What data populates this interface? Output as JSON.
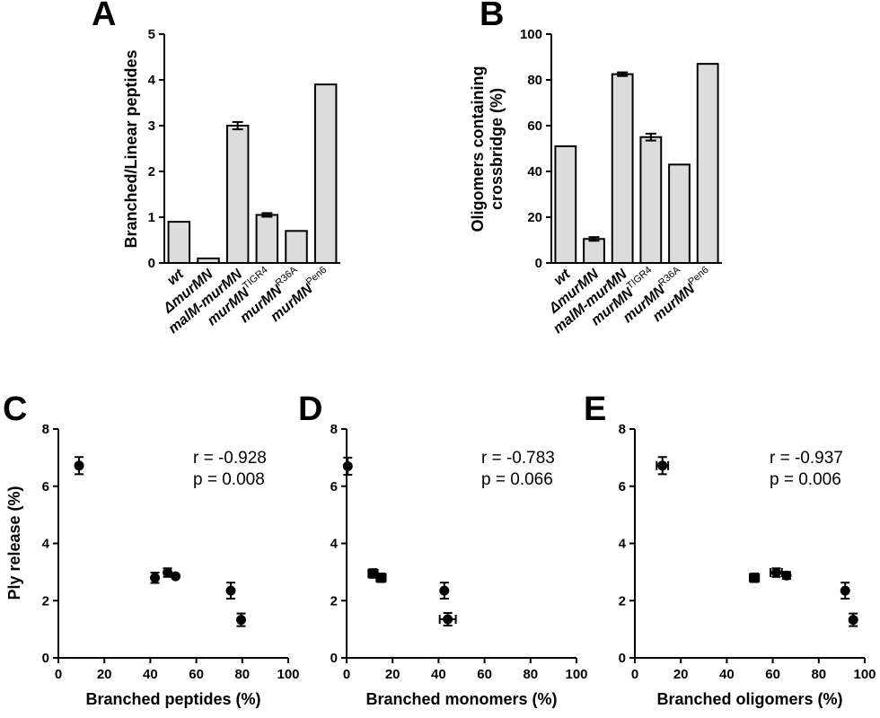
{
  "chart_data": [
    {
      "panel": "A",
      "type": "bar",
      "categories": [
        "wt",
        "ΔmurMN",
        "malM-murMN",
        "murMN^TIGR4",
        "murMN^R36A",
        "murMN^Pen6"
      ],
      "category_labels": [
        {
          "base": "wt",
          "sup": "",
          "italic": false
        },
        {
          "base": "ΔmurMN",
          "sup": "",
          "italic": true
        },
        {
          "base": "malM-murMN",
          "sup": "",
          "italic": true
        },
        {
          "base": "murMN",
          "sup": "TIGR4",
          "italic": true
        },
        {
          "base": "murMN",
          "sup": "R36A",
          "italic": true
        },
        {
          "base": "murMN",
          "sup": "Pen6",
          "italic": true
        }
      ],
      "values": [
        0.9,
        0.1,
        3.0,
        1.05,
        0.7,
        3.9
      ],
      "errors": [
        0,
        0,
        0.08,
        0.04,
        0,
        0
      ],
      "ylabel": "Branched/Linear peptides",
      "ylim": [
        0,
        5
      ],
      "yticks": [
        0,
        1,
        2,
        3,
        4,
        5
      ]
    },
    {
      "panel": "B",
      "type": "bar",
      "categories": [
        "wt",
        "ΔmurMN",
        "malM-murMN",
        "murMN^TIGR4",
        "murMN^R36A",
        "murMN^Pen6"
      ],
      "category_labels": [
        {
          "base": "wt",
          "sup": "",
          "italic": false
        },
        {
          "base": "ΔmurMN",
          "sup": "",
          "italic": true
        },
        {
          "base": "malM-murMN",
          "sup": "",
          "italic": true
        },
        {
          "base": "murMN",
          "sup": "TIGR4",
          "italic": true
        },
        {
          "base": "murMN",
          "sup": "R36A",
          "italic": true
        },
        {
          "base": "murMN",
          "sup": "Pen6",
          "italic": true
        }
      ],
      "values": [
        51,
        10.5,
        82.5,
        55,
        43,
        87
      ],
      "errors": [
        0,
        0.8,
        0.8,
        1.5,
        0,
        0
      ],
      "ylabel_lines": [
        "Oligomers containing",
        "crossbridge (%)"
      ],
      "ylim": [
        0,
        100
      ],
      "yticks": [
        0,
        20,
        40,
        60,
        80,
        100
      ]
    },
    {
      "panel": "C",
      "type": "scatter",
      "points": [
        {
          "x": 9,
          "y": 6.72,
          "xerr": 0,
          "yerr": 0.3
        },
        {
          "x": 42,
          "y": 2.8,
          "xerr": 0,
          "yerr": 0.18
        },
        {
          "x": 47.5,
          "y": 2.98,
          "xerr": 0,
          "yerr": 0.15
        },
        {
          "x": 51,
          "y": 2.85,
          "xerr": 0,
          "yerr": 0
        },
        {
          "x": 75,
          "y": 2.35,
          "xerr": 0,
          "yerr": 0.28
        },
        {
          "x": 79.5,
          "y": 1.33,
          "xerr": 0,
          "yerr": 0.22
        }
      ],
      "xlabel": "Branched peptides (%)",
      "ylabel": "Ply release (%)",
      "xlim": [
        0,
        100
      ],
      "ylim": [
        0,
        8
      ],
      "xticks": [
        0,
        20,
        40,
        60,
        80,
        100
      ],
      "yticks": [
        0,
        2,
        4,
        6,
        8
      ],
      "annotation": [
        "r = -0.928",
        "p = 0.008"
      ]
    },
    {
      "panel": "D",
      "type": "scatter",
      "points": [
        {
          "x": 0.5,
          "y": 6.7,
          "xerr": 0,
          "yerr": 0.3
        },
        {
          "x": 11.5,
          "y": 2.95,
          "xerr": 2,
          "yerr": 0.15
        },
        {
          "x": 15,
          "y": 2.8,
          "xerr": 2,
          "yerr": 0.15
        },
        {
          "x": 42.5,
          "y": 2.35,
          "xerr": 0,
          "yerr": 0.28
        },
        {
          "x": 44,
          "y": 1.35,
          "xerr": 3.5,
          "yerr": 0.22
        }
      ],
      "xlabel": "Branched monomers (%)",
      "ylabel": "",
      "xlim": [
        0,
        100
      ],
      "ylim": [
        0,
        8
      ],
      "xticks": [
        0,
        20,
        40,
        60,
        80,
        100
      ],
      "yticks": [
        0,
        2,
        4,
        6,
        8
      ],
      "annotation": [
        "r = -0.783",
        "p = 0.066"
      ]
    },
    {
      "panel": "E",
      "type": "scatter",
      "points": [
        {
          "x": 12,
          "y": 6.72,
          "xerr": 2.5,
          "yerr": 0.3
        },
        {
          "x": 52,
          "y": 2.8,
          "xerr": 2,
          "yerr": 0.15
        },
        {
          "x": 61.5,
          "y": 2.98,
          "xerr": 2.5,
          "yerr": 0.15
        },
        {
          "x": 66,
          "y": 2.88,
          "xerr": 1,
          "yerr": 0.12
        },
        {
          "x": 91.5,
          "y": 2.35,
          "xerr": 0,
          "yerr": 0.28
        },
        {
          "x": 95,
          "y": 1.33,
          "xerr": 0,
          "yerr": 0.22
        }
      ],
      "xlabel": "Branched oligomers (%)",
      "ylabel": "",
      "xlim": [
        0,
        100
      ],
      "ylim": [
        0,
        8
      ],
      "xticks": [
        0,
        20,
        40,
        60,
        80,
        100
      ],
      "yticks": [
        0,
        2,
        4,
        6,
        8
      ],
      "annotation": [
        "r = -0.937",
        "p = 0.006"
      ]
    }
  ]
}
